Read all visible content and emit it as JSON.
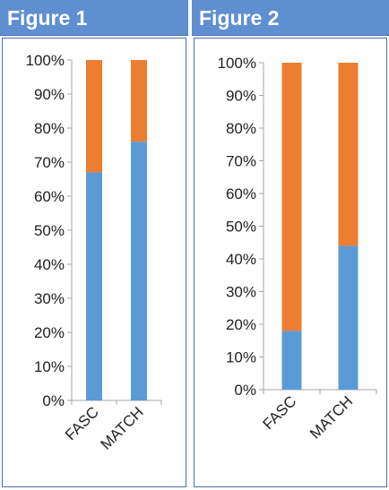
{
  "colors": {
    "header_bg": "#5f8fd0",
    "series_bottom": "#5b9bd5",
    "series_top": "#ed7d31",
    "axis": "#a6a6a6"
  },
  "chart_data": [
    {
      "type": "bar",
      "stacked": true,
      "percent": true,
      "title": "Figure 1",
      "categories": [
        "FASC",
        "MATCH"
      ],
      "series": [
        {
          "values": [
            67,
            76
          ],
          "color": "#5b9bd5"
        },
        {
          "values": [
            33,
            24
          ],
          "color": "#ed7d31"
        }
      ],
      "yticks": [
        "0%",
        "10%",
        "20%",
        "30%",
        "40%",
        "50%",
        "60%",
        "70%",
        "80%",
        "90%",
        "100%"
      ],
      "ylim": [
        0,
        100
      ],
      "grid": false,
      "legend": "none"
    },
    {
      "type": "bar",
      "stacked": true,
      "percent": true,
      "title": "Figure 2",
      "categories": [
        "FASC",
        "MATCH"
      ],
      "series": [
        {
          "values": [
            18,
            44
          ],
          "color": "#5b9bd5"
        },
        {
          "values": [
            82,
            56
          ],
          "color": "#ed7d31"
        }
      ],
      "yticks": [
        "0%",
        "10%",
        "20%",
        "30%",
        "40%",
        "50%",
        "60%",
        "70%",
        "80%",
        "90%",
        "100%"
      ],
      "ylim": [
        0,
        100
      ],
      "grid": false,
      "legend": "none"
    }
  ]
}
